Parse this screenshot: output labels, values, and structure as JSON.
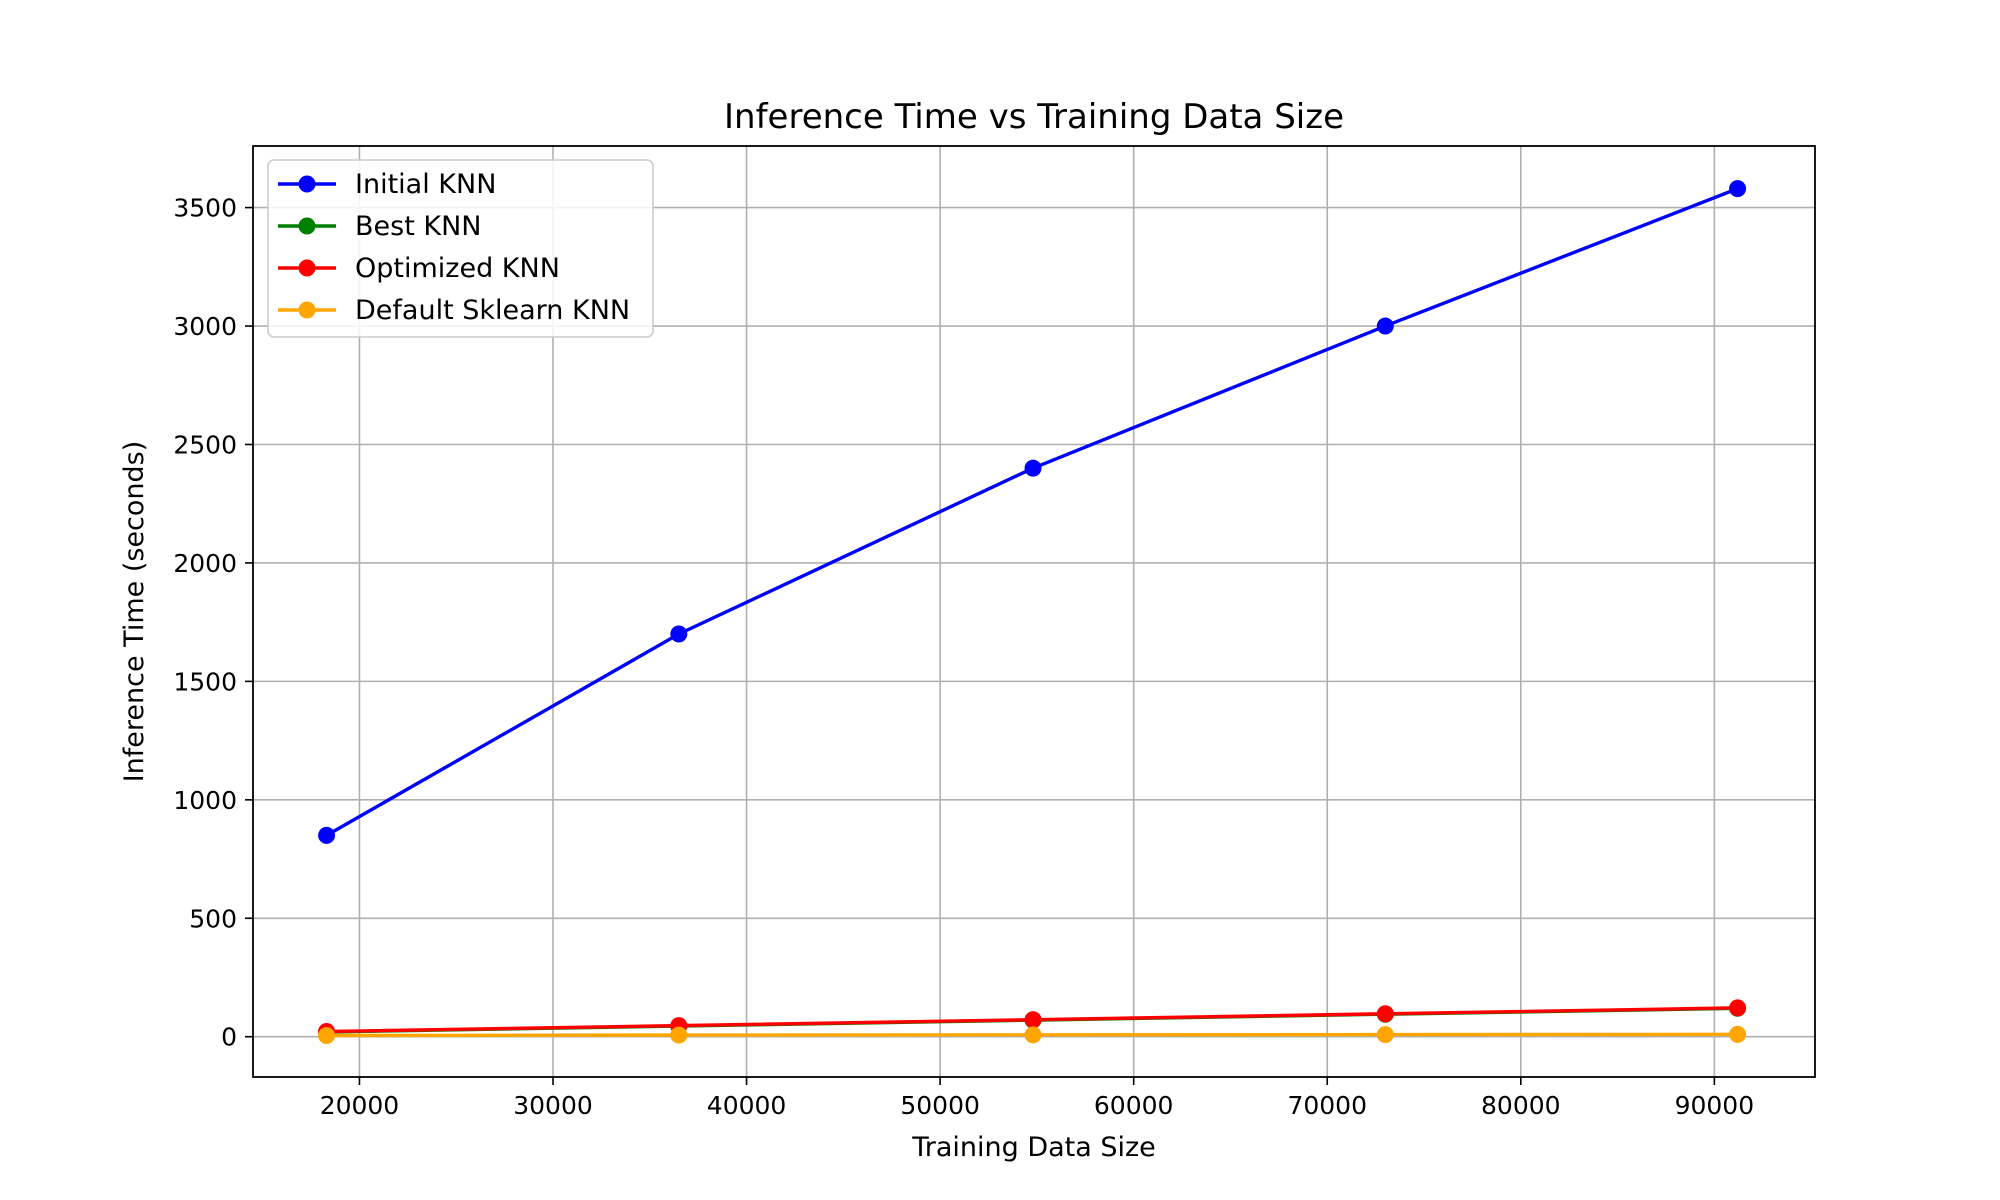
{
  "chart_data": {
    "type": "line",
    "title": "Inference Time vs Training Data Size",
    "xlabel": "Training Data Size",
    "ylabel": "Inference Time (seconds)",
    "x": [
      18300,
      36500,
      54800,
      73000,
      91200
    ],
    "xlim": [
      14500,
      95200
    ],
    "ylim": [
      -170,
      3760
    ],
    "xticks": [
      20000,
      30000,
      40000,
      50000,
      60000,
      70000,
      80000,
      90000
    ],
    "yticks": [
      0,
      500,
      1000,
      1500,
      2000,
      2500,
      3000,
      3500
    ],
    "xtick_labels": [
      "20000",
      "30000",
      "40000",
      "50000",
      "60000",
      "70000",
      "80000",
      "90000"
    ],
    "ytick_labels": [
      "0",
      "500",
      "1000",
      "1500",
      "2000",
      "2500",
      "3000",
      "3500"
    ],
    "grid": true,
    "legend_position": "top-left",
    "series": [
      {
        "name": "Initial KNN",
        "color": "#0000ff",
        "values": [
          850,
          1700,
          2400,
          3000,
          3580
        ]
      },
      {
        "name": "Best KNN",
        "color": "#008000",
        "values": [
          20,
          45,
          70,
          95,
          120
        ]
      },
      {
        "name": "Optimized KNN",
        "color": "#ff0000",
        "values": [
          22,
          47,
          72,
          97,
          122
        ]
      },
      {
        "name": "Default Sklearn KNN",
        "color": "#ffa500",
        "values": [
          5,
          7,
          8,
          9,
          10
        ]
      }
    ]
  }
}
